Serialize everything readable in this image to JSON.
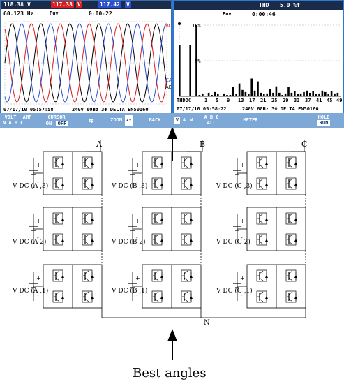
{
  "scope": {
    "top_readings": {
      "v1": "118.38",
      "v2": "117.38",
      "v3": "117.42",
      "unit": "V",
      "thd_label": "THD",
      "thd_value": "5.0 %f"
    },
    "waveform": {
      "freq": "60.123 Hz",
      "pf_label": "Puv",
      "time": "0:00:22",
      "ch_a": "BC",
      "ch_b": "CA",
      "ch_c": "AB",
      "timestamp": "07/17/10 05:57:58",
      "status": "240V 60Hz 3Φ DELTA EN50160"
    },
    "harmonics": {
      "pf_label": "Puv",
      "time": "0:00:46",
      "y_top": "10%",
      "y_mid": "5%",
      "x_ticks": [
        "THDDC",
        "1",
        "5",
        "9",
        "13",
        "17",
        "21",
        "25",
        "29",
        "33",
        "37",
        "41",
        "45",
        "49"
      ],
      "timestamp": "07/17/10 05:58:22",
      "status": "240V 60Hz 3Φ DELTA EN50160"
    },
    "softkeys": {
      "volt": "VOLT",
      "amp": "AMP",
      "cursor": "CURSOR",
      "on": "ON",
      "off": "OFF",
      "mabc": "N A B C",
      "zoom": "ZOOM",
      "back": "BACK",
      "v": "V",
      "a": "A",
      "w": "W",
      "abc": "A B C",
      "all": "ALL",
      "meter": "METER",
      "hold": "HOLD",
      "run": "RUN"
    }
  },
  "circuit": {
    "phases": [
      "A",
      "B",
      "C"
    ],
    "neutral": "N",
    "labels": {
      "a3": "V DC (A ,3)",
      "a2": "V DC (A 2)",
      "a1": "V DC (A ,1)",
      "b3": "V DC (B ,3)",
      "b2": "V DC (B 2)",
      "b1": "V DC (B ,1)",
      "c3": "V DC (C ,3)",
      "c2": "V DC (C 2)",
      "c1": "V DC (C ,1)"
    },
    "plus": "+",
    "minus": "-"
  },
  "caption": "Best angles"
}
